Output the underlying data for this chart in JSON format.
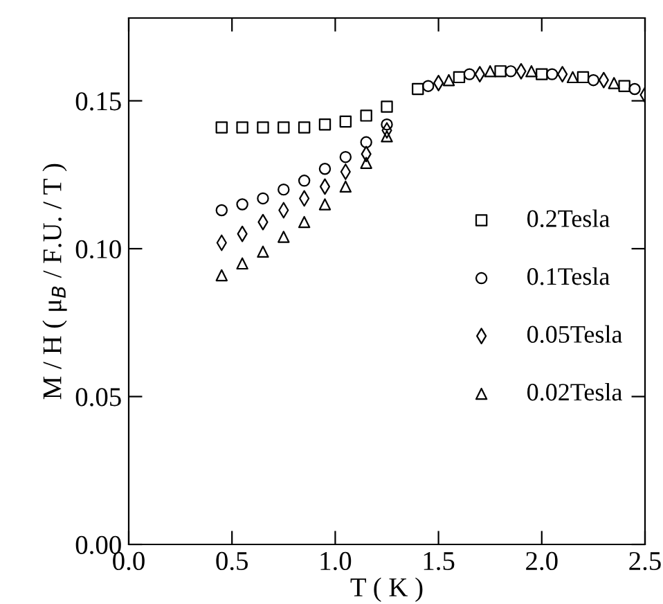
{
  "chart_data": {
    "type": "scatter",
    "xlabel": "T ( K )",
    "ylabel": "M / H ( μ$_{B}$ / F.U. / T )",
    "xlim": [
      0.0,
      2.5
    ],
    "xticks": [
      {
        "value": 0.0,
        "label": "0.0"
      },
      0.5,
      {
        "value": 1.0,
        "label": "1.0"
      },
      1.5,
      {
        "value": 2.0,
        "label": "2.0"
      },
      2.5
    ],
    "ylim": [
      0.0,
      0.178
    ],
    "yticks": [
      {
        "value": 0.0,
        "label": "0.00"
      },
      0.05,
      {
        "value": 0.1,
        "label": "0.10"
      },
      0.15
    ],
    "grid": false,
    "legend": "right",
    "series": [
      {
        "name": "0.2Tesla",
        "color": "#000000",
        "marker": "square",
        "x": [
          0.45,
          0.55,
          0.65,
          0.75,
          0.85,
          0.95,
          1.05,
          1.15,
          1.25,
          1.4,
          1.6,
          1.8,
          2.0,
          2.2,
          2.4
        ],
        "values": [
          0.141,
          0.141,
          0.141,
          0.141,
          0.141,
          0.142,
          0.143,
          0.145,
          0.148,
          0.154,
          0.158,
          0.16,
          0.159,
          0.158,
          0.155
        ]
      },
      {
        "name": "0.1Tesla",
        "color": "#000000",
        "marker": "circle",
        "x": [
          0.45,
          0.55,
          0.65,
          0.75,
          0.85,
          0.95,
          1.05,
          1.15,
          1.25,
          1.45,
          1.65,
          1.85,
          2.05,
          2.25,
          2.45
        ],
        "values": [
          0.113,
          0.115,
          0.117,
          0.12,
          0.123,
          0.127,
          0.131,
          0.136,
          0.142,
          0.155,
          0.159,
          0.16,
          0.159,
          0.157,
          0.154
        ]
      },
      {
        "name": "0.05Tesla",
        "color": "#000000",
        "marker": "diamond",
        "x": [
          0.45,
          0.55,
          0.65,
          0.75,
          0.85,
          0.95,
          1.05,
          1.15,
          1.25,
          1.5,
          1.7,
          1.9,
          2.1,
          2.3,
          2.5
        ],
        "values": [
          0.102,
          0.105,
          0.109,
          0.113,
          0.117,
          0.121,
          0.126,
          0.132,
          0.14,
          0.156,
          0.159,
          0.16,
          0.159,
          0.157,
          0.152
        ]
      },
      {
        "name": "0.02Tesla",
        "color": "#000000",
        "marker": "triangle",
        "x": [
          0.45,
          0.55,
          0.65,
          0.75,
          0.85,
          0.95,
          1.05,
          1.15,
          1.25,
          1.55,
          1.75,
          1.95,
          2.15,
          2.35
        ],
        "values": [
          0.091,
          0.095,
          0.099,
          0.104,
          0.109,
          0.115,
          0.121,
          0.129,
          0.138,
          0.157,
          0.16,
          0.16,
          0.158,
          0.156
        ]
      }
    ]
  }
}
